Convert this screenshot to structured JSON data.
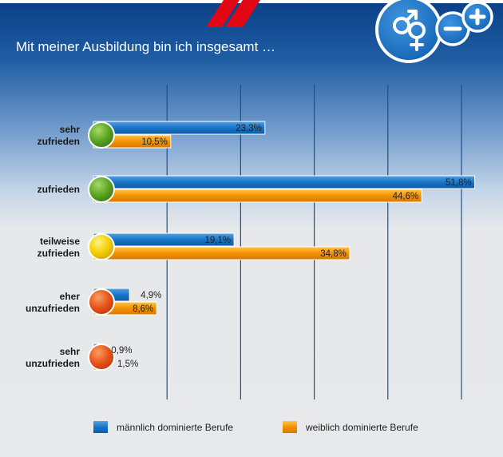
{
  "colors": {
    "male": "#1a73c4",
    "female": "#f39200",
    "grid": "#1c4f8c",
    "circle_green": "#5aa523",
    "circle_yellow": "#f2cf00",
    "circle_orange": "#e8531a"
  },
  "icons": [
    "gender-symbol-icon",
    "minus-plus-icon"
  ],
  "chart_data": {
    "type": "bar",
    "orientation": "horizontal",
    "title": "Mit meiner Ausbildung bin ich insgesamt …",
    "categories": [
      {
        "line1": "sehr",
        "line2": "zufrieden",
        "circle": "green"
      },
      {
        "line1": "zufrieden",
        "line2": "",
        "circle": "green"
      },
      {
        "line1": "teilweise",
        "line2": "zufrieden",
        "circle": "yellow"
      },
      {
        "line1": "eher",
        "line2": "unzufrieden",
        "circle": "orange"
      },
      {
        "line1": "sehr",
        "line2": "unzufrieden",
        "circle": "orange"
      }
    ],
    "series": [
      {
        "name": "männlich dominierte Berufe",
        "values": [
          23.3,
          51.8,
          19.1,
          4.9,
          0.9
        ],
        "labels": [
          "23,3%",
          "51,8%",
          "19,1%",
          "4,9%",
          "0,9%"
        ]
      },
      {
        "name": "weiblich dominierte Berufe",
        "values": [
          10.5,
          44.6,
          34.8,
          8.6,
          1.5
        ],
        "labels": [
          "10,5%",
          "44,6%",
          "34,8%",
          "8,6%",
          "1,5%"
        ]
      }
    ],
    "xlim": [
      0,
      55
    ],
    "grid": true,
    "legend": "bottom"
  }
}
